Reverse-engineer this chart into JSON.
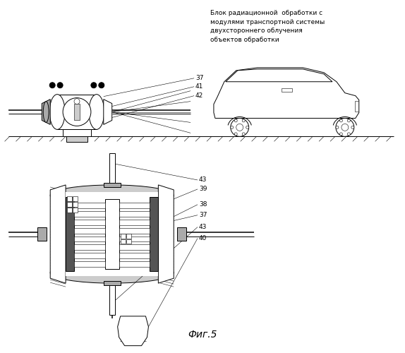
{
  "title": "Фиг.5",
  "header_text": "Блок радиационной  обработки с\nмодулями транспортной системы\nдвухстороннего облучения\nобъектов обработки",
  "bg_color": "#ffffff",
  "lc": "#000000",
  "fig_width": 5.74,
  "fig_height": 5.0,
  "dpi": 100
}
